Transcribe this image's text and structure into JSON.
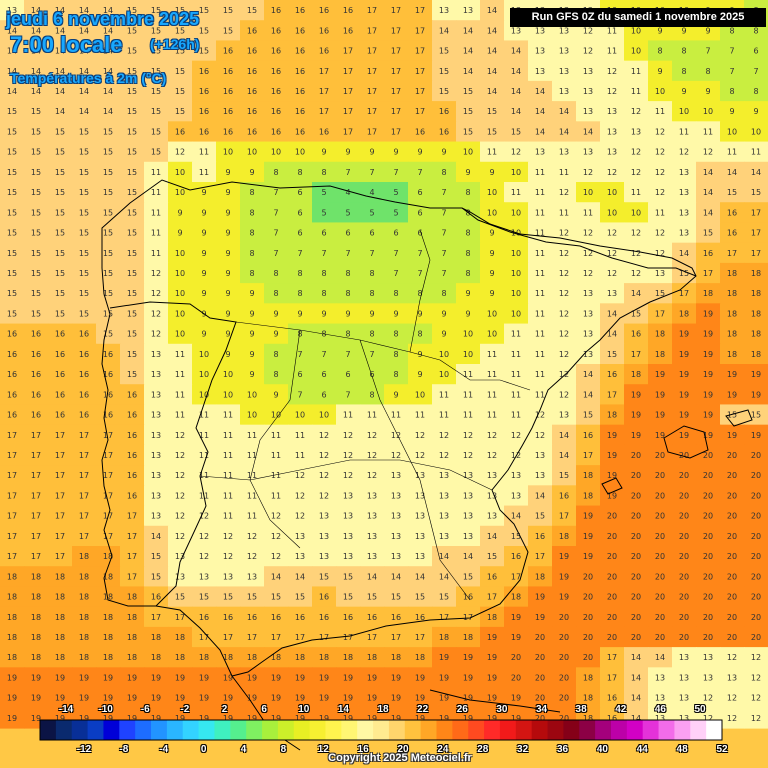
{
  "header": {
    "date": "jeudi 6 novembre 2025",
    "local_time": "7:00 locale",
    "lead_time": "(+126h)",
    "variable": "Températures à 2m (°C)"
  },
  "run_info": "Run GFS 0Z du samedi 1 novembre 2025",
  "copyright": "Copyright 2025 Meteociel.fr",
  "map": {
    "region": "Péninsule Ibérique",
    "field": "2m temperature",
    "unit": "°C",
    "colors": {
      "cold_green": "#6fe36a",
      "mid_yellow_green": "#c9ee40",
      "yellow": "#f4ee2c",
      "pale_yellow": "#fff9a8",
      "light_orange": "#ffd27a",
      "orange": "#ffa726",
      "deep_orange": "#ff8618",
      "border": "#000000"
    },
    "value_grid": [
      "13 14 14 14 14 15 15 15 15 15 15 16 16 16 16 17 17 17 13 13 14 13 13 13 12 10 10 10 10 9 9 8",
      "14 14 14 14 14 15 15 15 15 15 16 16 16 16 16 17 17 17 14 14 14 13 13 13 12 11 10 9 9 9 8 8",
      "14 14 14 14 14 15 15 15 15 16 16 16 16 16 17 17 17 17 15 14 14 14 13 13 12 11 10 8 8 7 7 6",
      "14 14 14 14 14 15 15 15 16 16 16 16 16 17 17 17 17 17 15 14 14 14 13 13 13 12 11 9 8 8 7 7",
      "14 14 14 14 14 15 15 15 16 16 16 16 16 17 17 17 17 17 15 15 14 14 14 13 13 12 11 10 9 9 8 8",
      "15 15 14 14 14 15 15 15 16 16 16 16 16 17 17 17 17 17 16 15 15 14 14 14 13 13 12 11 10 10 9 9",
      "15 15 15 15 15 15 15 16 16 16 16 16 16 16 17 17 17 16 16 15 15 15 14 14 14 13 13 12 11 11 10 10",
      "15 15 15 15 15 15 15 12 11 10 10 10 10 9 9 9 9 9 9 10 11 12 13 13 13 13 12 12 12 12 11 11",
      "15 15 15 15 15 15 11 10 11 9 9 8 8 8 7 7 7 7 8 9 9 10 11 11 12 12 12 12 13 14 14 14",
      "15 15 15 15 15 15 11 10 9 9 8 7 6 5 4 4 5 6 7 8 10 11 11 12 10 10 11 12 13 14 15 15",
      "15 15 15 15 15 15 11 9 9 9 8 7 6 5 5 5 5 6 7 8 10 10 11 11 11 10 10 11 13 14 16 17",
      "15 15 15 15 15 15 11 9 9 9 8 7 6 6 6 6 6 6 7 8 9 10 11 12 12 12 12 12 13 15 16 17",
      "15 15 15 15 15 15 11 10 9 9 8 7 7 7 7 7 7 7 7 8 9 10 11 12 12 12 12 12 14 16 17 17",
      "15 15 15 15 15 15 12 10 9 9 8 8 8 8 8 8 7 7 7 8 9 10 11 12 12 12 12 13 15 17 18 18",
      "15 15 15 15 15 15 12 10 9 9 9 8 8 8 8 8 8 8 8 9 9 10 11 12 13 13 14 15 17 18 18 18",
      "15 15 15 15 15 15 12 10 9 9 9 9 9 9 9 9 9 9 9 9 10 10 11 12 13 14 15 17 18 19 18 18",
      "16 16 16 16 15 15 12 10 9 9 9 9 8 8 8 8 8 8 9 10 10 11 11 12 13 14 16 18 19 19 18 18",
      "16 16 16 16 16 15 13 11 10 9 9 8 7 7 7 7 8 9 10 10 11 11 11 12 13 15 17 18 19 19 18 18",
      "16 16 16 16 16 15 13 11 10 10 9 8 6 6 6 6 8 9 10 11 11 11 11 12 14 16 18 19 19 19 19 19",
      "16 16 16 16 16 16 13 11 10 10 10 9 7 6 7 8 9 10 11 11 11 11 11 12 14 17 19 19 19 19 19 19",
      "16 16 16 16 16 16 13 11 11 11 10 10 10 10 11 11 11 11 11 11 11 11 12 13 15 18 19 19 19 19 15 15",
      "17 17 17 17 17 16 13 12 11 11 11 11 11 12 12 12 12 12 12 12 12 12 12 14 16 19 19 19 19 19 19 19",
      "17 17 17 17 17 16 13 12 11 11 11 11 11 12 12 12 12 12 12 12 12 12 13 14 17 19 20 20 20 20 20 20",
      "17 17 17 17 17 16 13 12 11 11 11 11 12 12 12 12 13 13 13 13 13 13 13 15 18 19 20 20 20 20 20 20",
      "17 17 17 17 17 16 13 12 11 11 11 11 12 12 13 13 13 13 13 13 13 13 14 16 18 19 20 20 20 20 20 20",
      "17 17 17 17 17 17 13 12 12 11 11 12 12 13 13 13 13 13 13 13 13 14 15 17 19 20 20 20 20 20 20 20",
      "17 17 17 17 17 17 14 12 12 12 12 12 13 13 13 13 13 13 13 13 14 15 16 18 19 20 20 20 20 20 20 20",
      "17 17 17 18 18 17 15 13 12 12 12 12 13 13 13 13 13 13 14 14 15 16 17 19 19 20 20 20 20 20 20 20",
      "18 18 18 18 18 17 15 13 13 13 13 14 14 15 15 14 14 14 14 15 16 17 18 19 20 20 20 20 20 20 20 20",
      "18 18 18 18 18 18 16 15 15 15 15 15 15 16 15 15 15 15 15 16 17 18 19 19 20 20 20 20 20 20 20 20",
      "18 18 18 18 18 18 17 17 16 16 16 16 16 16 16 16 16 16 17 17 18 19 19 20 20 20 20 20 20 20 20 20",
      "18 18 18 18 18 18 18 18 17 17 17 17 17 17 17 17 17 17 18 18 19 19 20 20 20 20 20 20 20 20 20 20",
      "18 18 18 18 18 18 18 18 18 18 18 18 18 18 18 18 18 18 19 19 19 20 20 20 20 17 14 14 13 13 12 12",
      "19 19 19 19 19 19 19 19 19 19 19 19 19 19 19 19 19 19 19 19 19 20 20 20 18 17 14 13 13 13 13 12",
      "19 19 19 19 19 19 19 19 19 19 19 19 19 19 19 19 19 19 19 19 19 19 20 20 18 16 14 13 13 12 12 12",
      "19 19 19 19 19 19 19 19 19 19 19 19 19 19 19 19 19 19 19 19 19 19 20 20 18 16 14 13 13 12 12 12"
    ]
  },
  "legend": {
    "colors": [
      "#0b1445",
      "#0a2a6e",
      "#082f97",
      "#0a3dc4",
      "#0000d8",
      "#1f43ff",
      "#1d6dff",
      "#2294ff",
      "#2ab6ff",
      "#33d3ff",
      "#36e8f0",
      "#3ff0c0",
      "#55ef8e",
      "#7ff061",
      "#a8f03c",
      "#ccef2a",
      "#e8ef24",
      "#f7f031",
      "#fff44e",
      "#fff673",
      "#fff8a4",
      "#ffeb90",
      "#ffd56c",
      "#ffc23e",
      "#ffa726",
      "#ff8618",
      "#ff6a18",
      "#ff4a20",
      "#ff2a28",
      "#f21a1a",
      "#d41512",
      "#b60a0c",
      "#9c0610",
      "#850018",
      "#8c0045",
      "#a4007c",
      "#bc00a8",
      "#d200c5",
      "#e432d9",
      "#f36cea",
      "#fba0f2",
      "#ffd1f8",
      "#ffffff"
    ],
    "labels_top": [
      "-14",
      "-10",
      "-6",
      "-2",
      "2",
      "6",
      "10",
      "14",
      "18",
      "22",
      "26",
      "30",
      "34",
      "38",
      "42",
      "46",
      "50"
    ],
    "labels_bottom": [
      "-12",
      "-8",
      "-4",
      "0",
      "4",
      "8",
      "12",
      "16",
      "20",
      "24",
      "28",
      "32",
      "36",
      "40",
      "44",
      "48",
      "52"
    ]
  }
}
